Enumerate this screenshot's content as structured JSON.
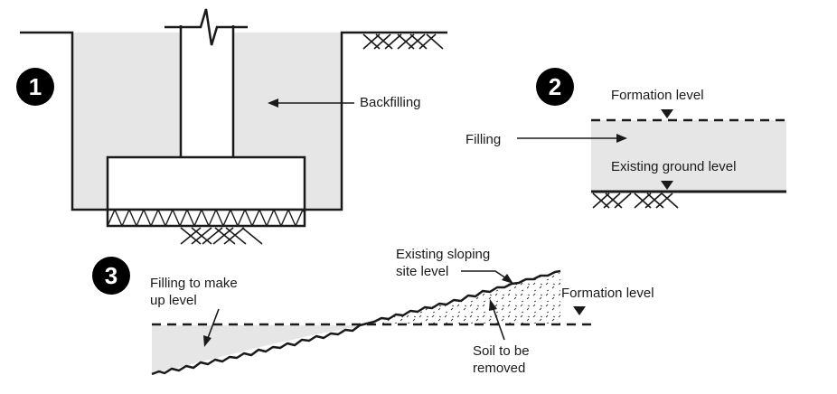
{
  "figure_1": {
    "number": "1",
    "label_backfilling": "Backfilling"
  },
  "figure_2": {
    "number": "2",
    "label_formation_level": "Formation level",
    "label_filling": "Filling",
    "label_existing_ground_level": "Existing ground level"
  },
  "figure_3": {
    "number": "3",
    "label_filling_make_up": [
      "Filling to make",
      "up level"
    ],
    "label_existing_sloping": [
      "Existing sloping",
      "site level"
    ],
    "label_formation_level": "Formation level",
    "label_soil_removed": [
      "Soil to be",
      "removed"
    ]
  },
  "colors": {
    "fill_grey": "#e6e6e6",
    "line": "#1a1a1a",
    "badge": "#000000"
  }
}
